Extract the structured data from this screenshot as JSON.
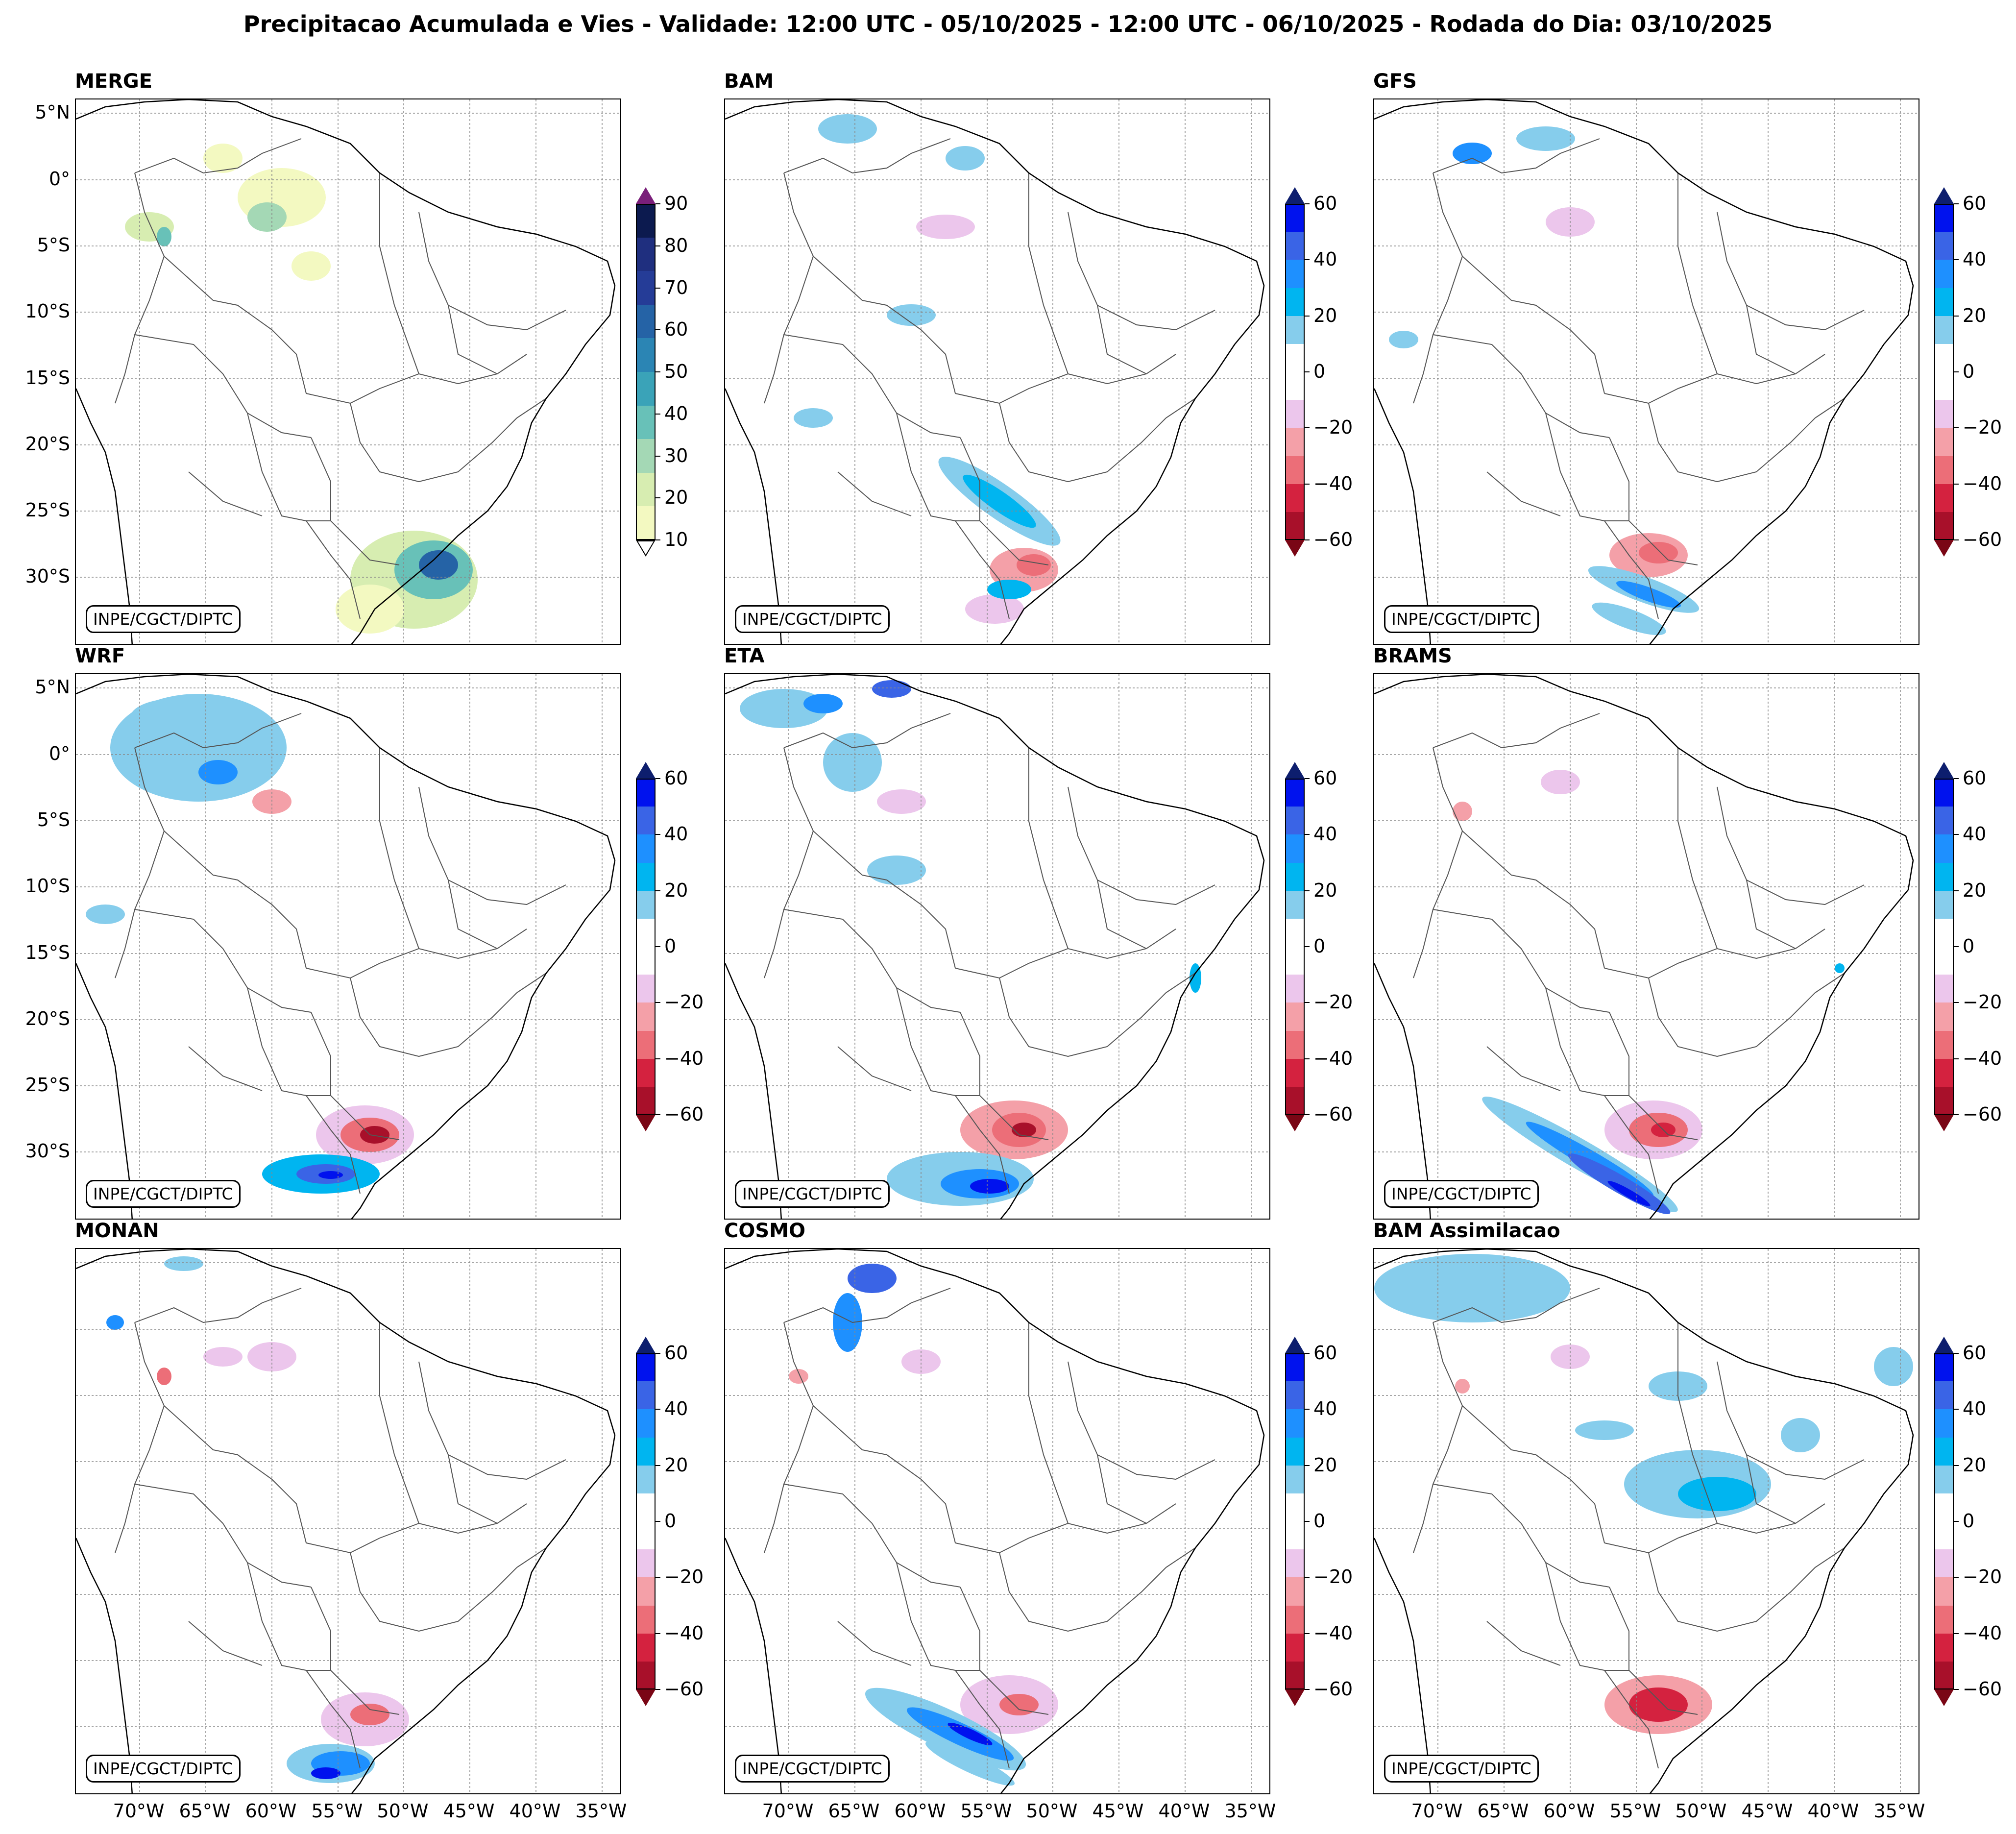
{
  "title": "Precipitacao Acumulada e Vies - Validade: 12:00 UTC - 05/10/2025 - 12:00 UTC - 06/10/2025 - Rodada do Dia: 03/10/2025",
  "credit": "INPE/CGCT/DIPTC",
  "lat_labels": [
    "5°N",
    "0°",
    "5°S",
    "10°S",
    "15°S",
    "20°S",
    "25°S",
    "30°S"
  ],
  "lon_labels": [
    "70°W",
    "65°W",
    "60°W",
    "55°W",
    "50°W",
    "45°W",
    "40°W",
    "35°W"
  ],
  "panels": [
    {
      "name": "MERGE",
      "kind": "precip"
    },
    {
      "name": "BAM",
      "kind": "bias"
    },
    {
      "name": "GFS",
      "kind": "bias"
    },
    {
      "name": "WRF",
      "kind": "bias"
    },
    {
      "name": "ETA",
      "kind": "bias"
    },
    {
      "name": "BRAMS",
      "kind": "bias"
    },
    {
      "name": "MONAN",
      "kind": "bias"
    },
    {
      "name": "COSMO",
      "kind": "bias"
    },
    {
      "name": "BAM Assimilacao",
      "kind": "bias"
    }
  ],
  "precip_scale": {
    "ticks": [
      "90",
      "80",
      "70",
      "60",
      "50",
      "40",
      "30",
      "20",
      "10"
    ],
    "colors": [
      "#0c1a4f",
      "#1f2f7f",
      "#253c97",
      "#2563a6",
      "#2b85b4",
      "#3aa3b8",
      "#68c1b8",
      "#a4d8b5",
      "#d7edb1",
      "#f3f9c1"
    ],
    "over": "#7a1f7a",
    "under": "#ffffff"
  },
  "bias_scale": {
    "ticks": [
      "60",
      "40",
      "20",
      "0",
      "−20",
      "−40",
      "−60"
    ],
    "colors": [
      "#0012ee",
      "#3a64e6",
      "#1e90ff",
      "#00b5f0",
      "#86cdec",
      "#ffffff",
      "#ffffff",
      "#ecc6ec",
      "#f4a0a8",
      "#ec6e78",
      "#d4223f",
      "#a8102a"
    ],
    "over": "#0d1e6e",
    "under": "#7a0615"
  }
}
